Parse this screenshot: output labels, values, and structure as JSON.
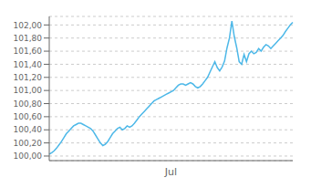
{
  "chart_data": {
    "type": "line",
    "categories": [
      null,
      null,
      null,
      null,
      null,
      null,
      null,
      null,
      null,
      null,
      null,
      null,
      null,
      null,
      null,
      null,
      null,
      null,
      null,
      null,
      null,
      null,
      null,
      null,
      null,
      null,
      null,
      null,
      null,
      null,
      null,
      null,
      null,
      null,
      null,
      null,
      null,
      null,
      null,
      null,
      null,
      null,
      null,
      null,
      null,
      null,
      null,
      null,
      null,
      null,
      "Jul",
      null,
      null,
      null,
      null,
      null,
      null,
      null,
      null,
      null,
      null,
      null,
      null,
      null,
      null,
      null,
      null,
      null,
      null,
      null,
      null,
      null,
      null,
      null,
      null,
      null,
      null,
      null,
      null,
      null,
      null,
      null,
      null,
      null,
      null,
      null,
      null,
      null,
      null,
      null,
      null,
      null,
      null,
      null,
      null,
      null,
      null,
      null,
      null,
      null,
      null
    ],
    "values": [
      100.03,
      100.05,
      100.08,
      100.12,
      100.17,
      100.22,
      100.28,
      100.34,
      100.38,
      100.42,
      100.46,
      100.48,
      100.5,
      100.5,
      100.48,
      100.46,
      100.44,
      100.42,
      100.38,
      100.32,
      100.26,
      100.2,
      100.16,
      100.18,
      100.22,
      100.28,
      100.34,
      100.38,
      100.42,
      100.44,
      100.4,
      100.42,
      100.46,
      100.44,
      100.46,
      100.5,
      100.55,
      100.6,
      100.64,
      100.68,
      100.72,
      100.76,
      100.8,
      100.84,
      100.86,
      100.88,
      100.9,
      100.92,
      100.94,
      100.96,
      100.98,
      101.0,
      101.04,
      101.08,
      101.1,
      101.1,
      101.08,
      101.1,
      101.12,
      101.1,
      101.06,
      101.04,
      101.06,
      101.1,
      101.15,
      101.2,
      101.28,
      101.36,
      101.44,
      101.35,
      101.3,
      101.36,
      101.45,
      101.65,
      101.8,
      102.06,
      101.82,
      101.65,
      101.44,
      101.4,
      101.55,
      101.44,
      101.56,
      101.6,
      101.56,
      101.58,
      101.64,
      101.6,
      101.66,
      101.7,
      101.68,
      101.64,
      101.68,
      101.72,
      101.76,
      101.8,
      101.84,
      101.9,
      101.95,
      102.0,
      102.04
    ],
    "color": "#4db8e8",
    "ylim": [
      99.93,
      102.13
    ],
    "yticks": [
      {
        "value": 100.0,
        "label": "100,00"
      },
      {
        "value": 100.2,
        "label": "100,20"
      },
      {
        "value": 100.4,
        "label": "100,40"
      },
      {
        "value": 100.6,
        "label": "100,60"
      },
      {
        "value": 100.8,
        "label": "100,80"
      },
      {
        "value": 101.0,
        "label": "101,00"
      },
      {
        "value": 101.2,
        "label": "101,20"
      },
      {
        "value": 101.4,
        "label": "101,40"
      },
      {
        "value": 101.6,
        "label": "101,60"
      },
      {
        "value": 101.8,
        "label": "101,80"
      },
      {
        "value": 102.0,
        "label": "102,00"
      }
    ],
    "grid": true
  }
}
